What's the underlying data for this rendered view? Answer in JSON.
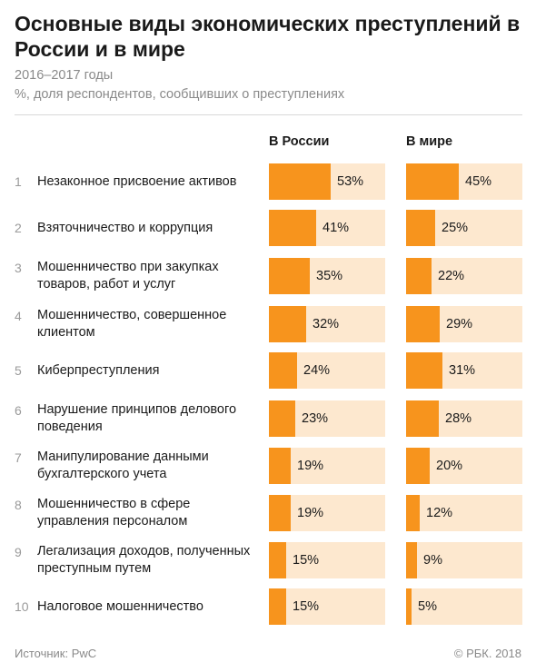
{
  "title": "Основные виды экономических преступлений в России и в мире",
  "subtitle_period": "2016–2017 годы",
  "subtitle_unit": "%, доля респондентов, сообщивших о преступлениях",
  "chart_data": {
    "type": "bar",
    "orientation": "horizontal",
    "xlim": [
      0,
      100
    ],
    "bar_color": "#f7941d",
    "track_color": "#fde8cf",
    "categories": [
      "Незаконное присвоение активов",
      "Взяточничество и коррупция",
      "Мошенничество при закупках товаров, работ и услуг",
      "Мошенничество, совершенное клиентом",
      "Киберпреступления",
      "Нарушение принципов делового поведения",
      "Манипулирование данными бухгалтерского учета",
      "Мошенничество в сфере управления персоналом",
      "Легализация доходов, полученных преступным путем",
      "Налоговое мошенничество"
    ],
    "ranks": [
      "1",
      "2",
      "3",
      "4",
      "5",
      "6",
      "7",
      "8",
      "9",
      "10"
    ],
    "series": [
      {
        "name": "В России",
        "values": [
          53,
          41,
          35,
          32,
          24,
          23,
          19,
          19,
          15,
          15
        ],
        "labels": [
          "53%",
          "41%",
          "35%",
          "32%",
          "24%",
          "23%",
          "19%",
          "19%",
          "15%",
          "15%"
        ]
      },
      {
        "name": "В мире",
        "values": [
          45,
          25,
          22,
          29,
          31,
          28,
          20,
          12,
          9,
          5
        ],
        "labels": [
          "45%",
          "25%",
          "22%",
          "29%",
          "31%",
          "28%",
          "20%",
          "12%",
          "9%",
          "5%"
        ]
      }
    ]
  },
  "footer": {
    "source": "Источник: PwC",
    "copyright": "© РБК. 2018"
  }
}
